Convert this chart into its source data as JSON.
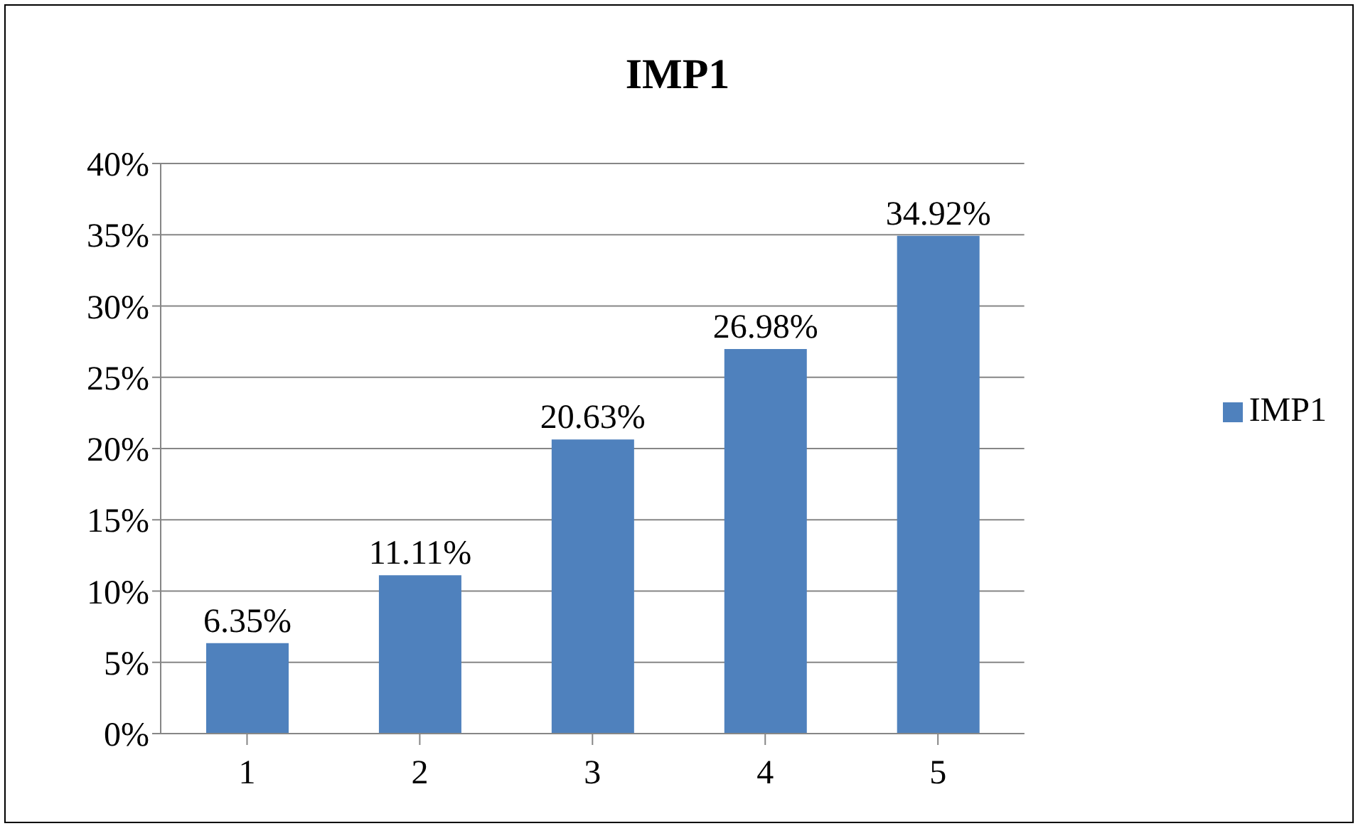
{
  "chart_data": {
    "type": "bar",
    "title": "IMP1",
    "categories": [
      "1",
      "2",
      "3",
      "4",
      "5"
    ],
    "series": [
      {
        "name": "IMP1",
        "color": "#4f81bd",
        "values": [
          6.35,
          11.11,
          20.63,
          26.98,
          34.92
        ],
        "value_labels": [
          "6.35%",
          "11.11%",
          "20.63%",
          "26.98%",
          "34.92%"
        ]
      }
    ],
    "ylim": [
      0,
      40
    ],
    "yticks": [
      {
        "value": 0,
        "label": "0%"
      },
      {
        "value": 5,
        "label": "5%"
      },
      {
        "value": 10,
        "label": "10%"
      },
      {
        "value": 15,
        "label": "15%"
      },
      {
        "value": 20,
        "label": "20%"
      },
      {
        "value": 25,
        "label": "25%"
      },
      {
        "value": 30,
        "label": "30%"
      },
      {
        "value": 35,
        "label": "35%"
      },
      {
        "value": 40,
        "label": "40%"
      }
    ],
    "grid": "y",
    "legend": "right"
  }
}
